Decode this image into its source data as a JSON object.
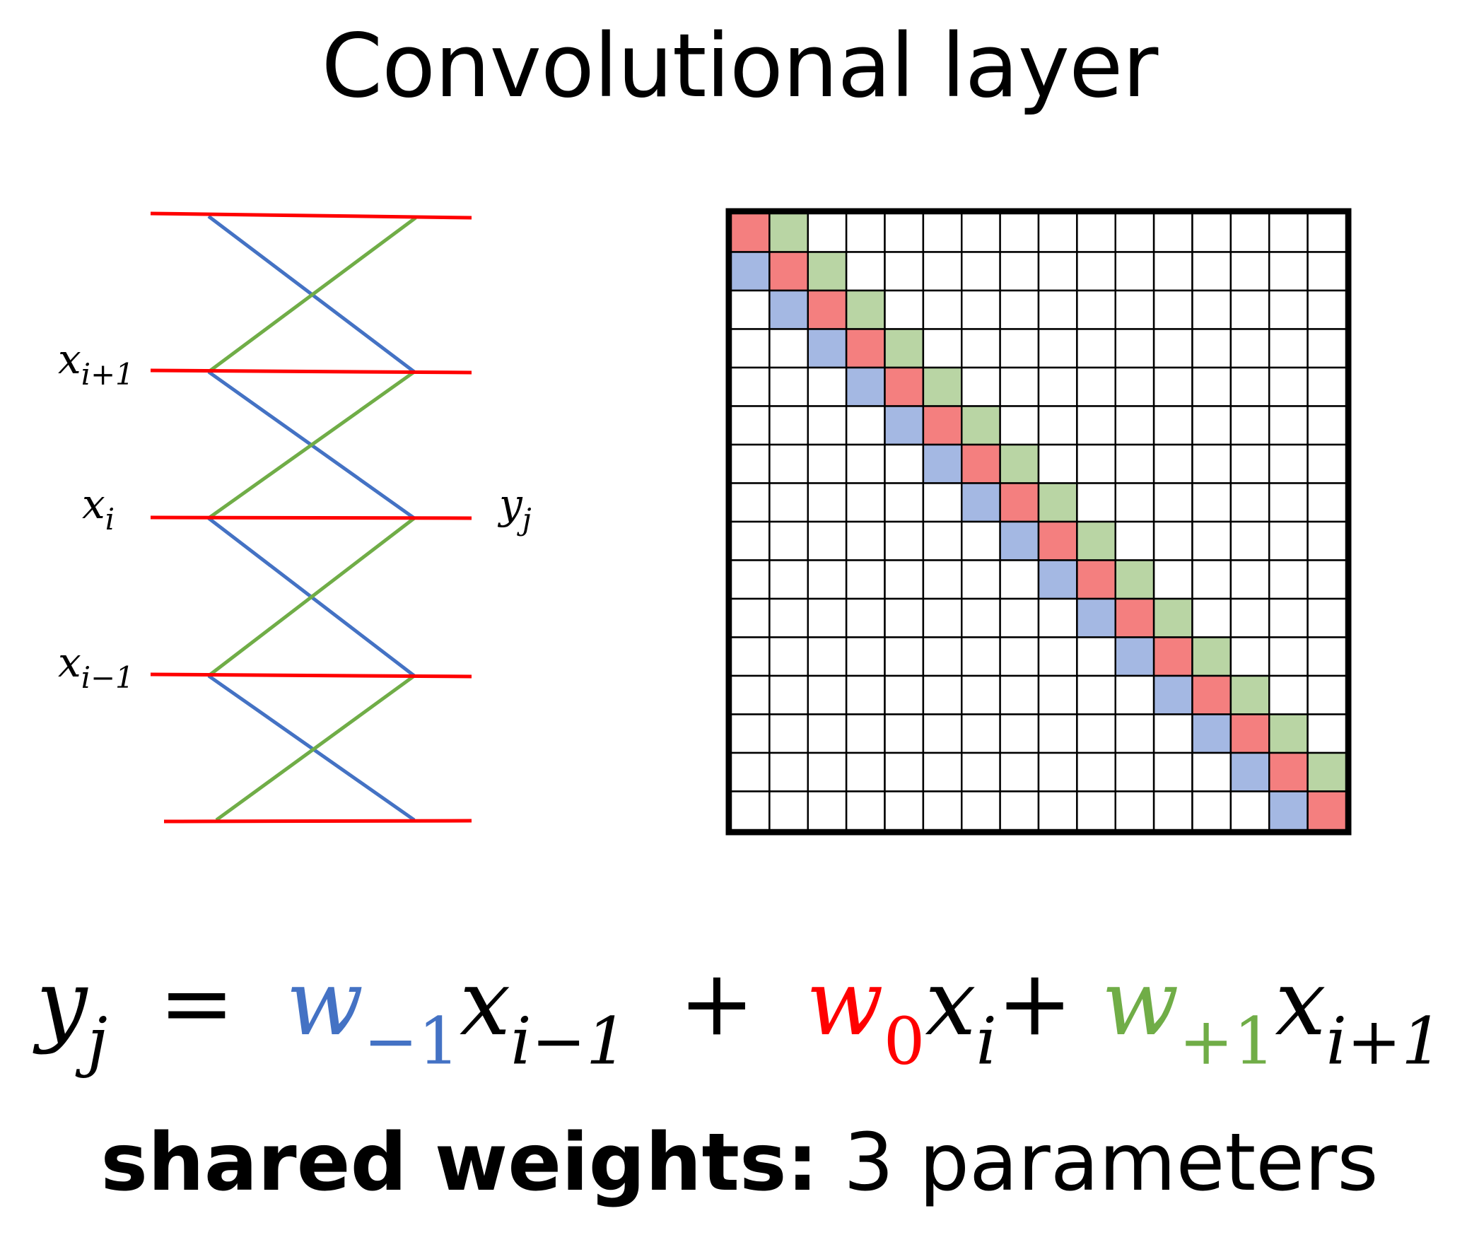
{
  "title": "Convolutional layer",
  "diagram": {
    "input_labels": [
      {
        "base": "x",
        "sub": "i+1"
      },
      {
        "base": "x",
        "sub": "i"
      },
      {
        "base": "x",
        "sub": "i−1"
      }
    ],
    "output_label": {
      "base": "y",
      "sub": "j"
    },
    "colors": {
      "w_minus1": "#4472c4",
      "w_0": "#ff0000",
      "w_plus1": "#70ad47",
      "cell_blue": "#a4b8e3",
      "cell_red": "#f47f7f",
      "cell_green": "#b9d5a4"
    }
  },
  "matrix": {
    "size": 16,
    "diagonals": [
      {
        "offset": -1,
        "color": "cell_blue"
      },
      {
        "offset": 0,
        "color": "cell_red"
      },
      {
        "offset": 1,
        "color": "cell_green"
      }
    ]
  },
  "equation": {
    "lhs": {
      "base": "y",
      "sub": "j"
    },
    "equals": "=",
    "terms": [
      {
        "w": "w",
        "w_sub": "−1",
        "color": "#4472c4",
        "x": "x",
        "x_sub": "i−1"
      },
      {
        "w": "w",
        "w_sub": "0",
        "color": "#ff0000",
        "x": "x",
        "x_sub": "i"
      },
      {
        "w": "w",
        "w_sub": "+1",
        "color": "#70ad47",
        "x": "x",
        "x_sub": "i+1"
      }
    ],
    "plus": "+"
  },
  "footer": {
    "bold": "shared weights:",
    "rest": "3 parameters"
  }
}
